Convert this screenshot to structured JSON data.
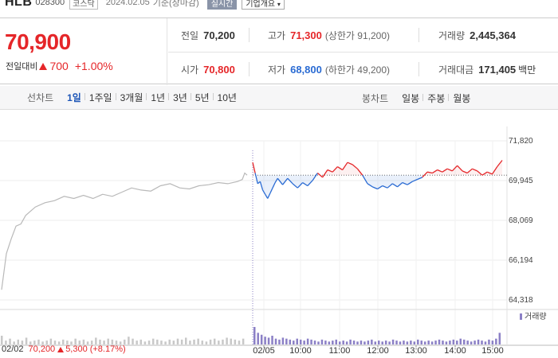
{
  "stock": {
    "name": "HLB",
    "code": "028300",
    "market": "코스닥",
    "datetime": "2024.02.05",
    "basis": "기준(장마감)",
    "realtime_label": "실시간",
    "info_label": "기업개요"
  },
  "summary": {
    "price": "70,900",
    "change_label": "전일대비",
    "change_value": "700",
    "change_pct": "+1.00%"
  },
  "stats": {
    "prev_close": {
      "label": "전일",
      "value": "70,200"
    },
    "high": {
      "label": "고가",
      "value": "71,300",
      "sub": "(상한가 91,200)"
    },
    "volume": {
      "label": "거래량",
      "value": "2,445,364"
    },
    "open": {
      "label": "시가",
      "value": "70,800"
    },
    "low": {
      "label": "저가",
      "value": "68,800",
      "sub": "(하한가 49,200)"
    },
    "amount": {
      "label": "거래대금",
      "value": "171,405",
      "unit": "백만"
    }
  },
  "toolbar": {
    "line_label": "선차트",
    "periods": [
      "1일",
      "1주일",
      "3개월",
      "1년",
      "3년",
      "5년",
      "10년"
    ],
    "active_period": "1일",
    "candle_label": "봉차트",
    "candles": [
      "일봉",
      "주봉",
      "월봉"
    ]
  },
  "colors": {
    "up": "#e52629",
    "down": "#2a6bd3",
    "prev": "#b9b9b9",
    "volume": "#8b80c6"
  },
  "chart_data": {
    "type": "line",
    "y_ticks": [
      "71,820",
      "69,945",
      "68,069",
      "66,194",
      "64,318"
    ],
    "y_tick_values": [
      71820,
      69945,
      68069,
      66194,
      64318
    ],
    "ylim": [
      64318,
      71820
    ],
    "reference_price": 70200,
    "x_ticks": [
      "02/05",
      "10:00",
      "11:00",
      "12:00",
      "13:00",
      "14:00",
      "15:00"
    ],
    "volume_label": "거래량",
    "prev_day": {
      "date": "02/02",
      "close": "70,200",
      "change": "5,300",
      "change_pct": "(+8.17%)",
      "points": [
        [
          0,
          64800
        ],
        [
          2,
          66500
        ],
        [
          4,
          67200
        ],
        [
          6,
          67800
        ],
        [
          8,
          67900
        ],
        [
          10,
          68300
        ],
        [
          14,
          68700
        ],
        [
          18,
          68900
        ],
        [
          22,
          69000
        ],
        [
          26,
          69200
        ],
        [
          30,
          69100
        ],
        [
          34,
          69250
        ],
        [
          38,
          69100
        ],
        [
          42,
          69300
        ],
        [
          46,
          69200
        ],
        [
          50,
          69400
        ],
        [
          54,
          69600
        ],
        [
          58,
          69500
        ],
        [
          62,
          69450
        ],
        [
          66,
          69700
        ],
        [
          70,
          69800
        ],
        [
          74,
          69600
        ],
        [
          78,
          69550
        ],
        [
          82,
          69700
        ],
        [
          86,
          69750
        ],
        [
          90,
          69850
        ],
        [
          94,
          69800
        ],
        [
          98,
          69900
        ],
        [
          100,
          70000
        ],
        [
          101,
          70300
        ],
        [
          102,
          70200
        ]
      ]
    },
    "today": {
      "points": [
        [
          0,
          70800
        ],
        [
          1,
          70300
        ],
        [
          2,
          69800
        ],
        [
          3,
          69900
        ],
        [
          4,
          69500
        ],
        [
          5,
          69300
        ],
        [
          6,
          69100
        ],
        [
          7,
          69350
        ],
        [
          8,
          69600
        ],
        [
          9,
          69850
        ],
        [
          10,
          70050
        ],
        [
          12,
          69750
        ],
        [
          14,
          70050
        ],
        [
          16,
          69800
        ],
        [
          18,
          69600
        ],
        [
          20,
          69850
        ],
        [
          22,
          69700
        ],
        [
          24,
          69950
        ],
        [
          26,
          70300
        ],
        [
          28,
          70100
        ],
        [
          30,
          70450
        ],
        [
          32,
          70350
        ],
        [
          34,
          70600
        ],
        [
          36,
          70450
        ],
        [
          38,
          70800
        ],
        [
          40,
          70700
        ],
        [
          42,
          70500
        ],
        [
          44,
          70200
        ],
        [
          46,
          69800
        ],
        [
          48,
          69650
        ],
        [
          50,
          69550
        ],
        [
          52,
          69700
        ],
        [
          54,
          69600
        ],
        [
          56,
          69800
        ],
        [
          58,
          69650
        ],
        [
          60,
          69850
        ],
        [
          62,
          69750
        ],
        [
          64,
          69900
        ],
        [
          66,
          70000
        ],
        [
          68,
          70100
        ],
        [
          70,
          70350
        ],
        [
          72,
          70300
        ],
        [
          74,
          70450
        ],
        [
          76,
          70350
        ],
        [
          78,
          70500
        ],
        [
          80,
          70400
        ],
        [
          82,
          70650
        ],
        [
          84,
          70400
        ],
        [
          86,
          70300
        ],
        [
          88,
          70500
        ],
        [
          90,
          70400
        ],
        [
          92,
          70200
        ],
        [
          94,
          70350
        ],
        [
          96,
          70250
        ],
        [
          98,
          70600
        ],
        [
          100,
          70900
        ]
      ]
    },
    "volume_bars": {
      "prev_day": [
        9,
        4,
        6,
        3,
        5,
        4,
        7,
        3,
        4,
        5,
        3,
        4,
        6,
        4,
        3,
        5,
        4,
        3,
        6,
        4,
        5,
        3,
        4,
        7,
        5,
        4,
        6,
        5,
        4,
        3,
        5,
        8,
        6,
        4,
        5,
        3,
        4,
        6,
        5,
        4,
        3,
        5,
        4,
        6,
        5,
        7,
        4,
        5,
        6,
        4,
        3,
        5,
        6,
        4,
        5,
        7,
        6,
        5,
        4,
        6
      ],
      "today": [
        18,
        12,
        10,
        8,
        7,
        9,
        6,
        5,
        7,
        6,
        5,
        4,
        6,
        5,
        4,
        6,
        5,
        4,
        3,
        5,
        4,
        3,
        4,
        5,
        3,
        4,
        3,
        5,
        4,
        3,
        4,
        3,
        4,
        5,
        3,
        4,
        3,
        4,
        3,
        5,
        4,
        3,
        4,
        3,
        4,
        3,
        5,
        4,
        3,
        4,
        3,
        4,
        5,
        4,
        3,
        4,
        5,
        4,
        6,
        5,
        4,
        3,
        4,
        5,
        4,
        3,
        5,
        4,
        6,
        12
      ]
    }
  }
}
